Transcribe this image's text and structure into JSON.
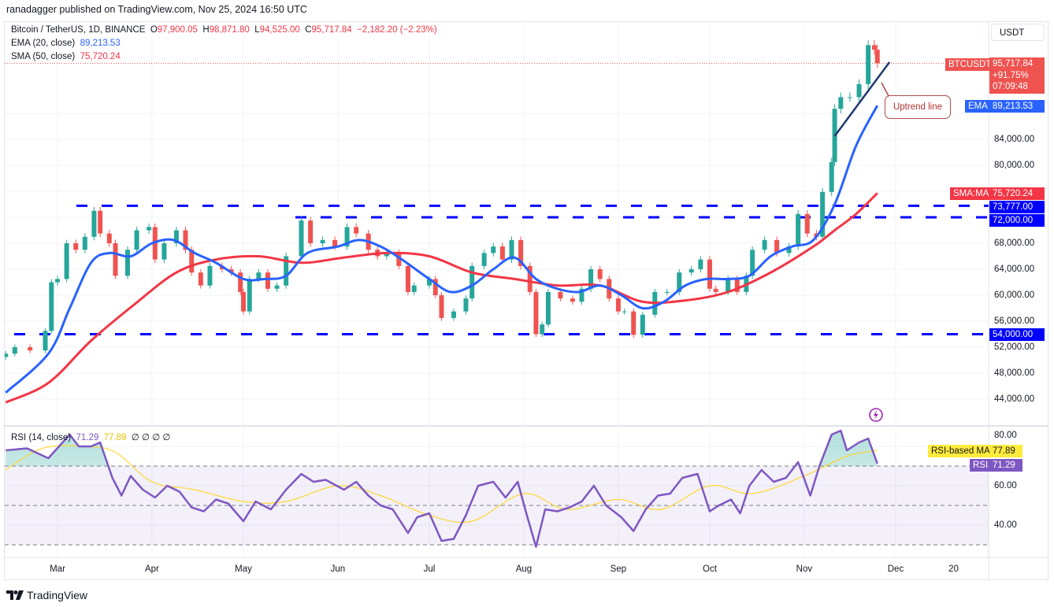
{
  "header": {
    "published": "ranadagger published on TradingView.com, Nov 25, 2024 16:50 UTC"
  },
  "legend": {
    "symbol": "Bitcoin / TetherUS, 1D, BINANCE",
    "o_label": "O",
    "open": "97,900.05",
    "h_label": "H",
    "high": "98,871.80",
    "l_label": "L",
    "low": "94,525.00",
    "c_label": "C",
    "close": "95,717.84",
    "change": "−2,182.20 (−2.23%)",
    "ema_label": "EMA (20, close)",
    "ema_value": "89,213.53",
    "sma_label": "SMA (50, close)",
    "sma_value": "75,720.24",
    "rsi_label": "RSI (14, close)",
    "rsi_value": "71.29",
    "rsi_ma_value": "77.89",
    "rsi_extra": "∅ ∅ ∅ ∅"
  },
  "axis": {
    "currency_button": "USDT",
    "price_ticks": [
      "84,000.00",
      "80,000.00",
      "68,000.00",
      "64,000.00",
      "60,000.00",
      "56,000.00",
      "52,000.00",
      "48,000.00",
      "44,000.00"
    ],
    "rsi_ticks": [
      "80.00",
      "60.00",
      "40.00"
    ],
    "time_ticks": [
      "Mar",
      "Apr",
      "May",
      "Jun",
      "Jul",
      "Aug",
      "Sep",
      "Oct",
      "Nov",
      "Dec",
      "20"
    ]
  },
  "tags": {
    "symbol_tag": "BTCUSDT",
    "last_price": "95,717.84",
    "pct_change": "+91.75%",
    "countdown": "07:09:48",
    "ema_tag": "EMA",
    "ema_value": "89,213.53",
    "sma_tag": "SMA:MA",
    "sma_value": "75,720.24",
    "level_1": "73,777.00",
    "level_2": "72,000.00",
    "level_3": "54,000.00",
    "rsi_ma_tag": "RSI-based MA",
    "rsi_ma_value": "77.89",
    "rsi_tag": "RSI",
    "rsi_value": "71.29"
  },
  "annotation": {
    "callout": "Uptrend line"
  },
  "branding": {
    "logo_text": "TradingView"
  },
  "colors": {
    "up": "#26a69a",
    "down": "#ef5350",
    "ema": "#2962ff",
    "sma": "#f23645",
    "levels": "#0000ff",
    "rsi": "#7e57c2",
    "rsi_ma": "#fdd835",
    "trendline": "#1e3a6e"
  },
  "chart_data": {
    "type": "candlestick",
    "symbol": "BTCUSDT",
    "interval": "1D",
    "price_scale": "linear",
    "ylim": [
      42000,
      100000
    ],
    "horizontal_levels": [
      73777,
      72000,
      54000
    ],
    "trendline": [
      [
        "2024-11-11",
        84500
      ],
      [
        "2024-11-29",
        95900
      ]
    ],
    "closes": [
      [
        "2024-02-13",
        51000
      ],
      [
        "2024-02-16",
        52000
      ],
      [
        "2024-02-21",
        51500
      ],
      [
        "2024-02-26",
        54500
      ],
      [
        "2024-02-28",
        62000
      ],
      [
        "2024-03-01",
        62500
      ],
      [
        "2024-03-04",
        68000
      ],
      [
        "2024-03-07",
        67000
      ],
      [
        "2024-03-10",
        69000
      ],
      [
        "2024-03-13",
        73000
      ],
      [
        "2024-03-15",
        69500
      ],
      [
        "2024-03-18",
        68000
      ],
      [
        "2024-03-20",
        63000
      ],
      [
        "2024-03-24",
        67000
      ],
      [
        "2024-03-27",
        70000
      ],
      [
        "2024-03-31",
        70500
      ],
      [
        "2024-04-02",
        65500
      ],
      [
        "2024-04-05",
        68000
      ],
      [
        "2024-04-09",
        70000
      ],
      [
        "2024-04-12",
        67000
      ],
      [
        "2024-04-14",
        63500
      ],
      [
        "2024-04-17",
        61500
      ],
      [
        "2024-04-20",
        64500
      ],
      [
        "2024-04-24",
        64000
      ],
      [
        "2024-04-27",
        63500
      ],
      [
        "2024-04-30",
        60500
      ],
      [
        "2024-05-01",
        57500
      ],
      [
        "2024-05-03",
        62500
      ],
      [
        "2024-05-06",
        63500
      ],
      [
        "2024-05-09",
        61000
      ],
      [
        "2024-05-12",
        61500
      ],
      [
        "2024-05-15",
        66000
      ],
      [
        "2024-05-20",
        71500
      ],
      [
        "2024-05-23",
        68000
      ],
      [
        "2024-05-27",
        68500
      ],
      [
        "2024-05-31",
        67500
      ],
      [
        "2024-06-04",
        70500
      ],
      [
        "2024-06-07",
        69500
      ],
      [
        "2024-06-11",
        67000
      ],
      [
        "2024-06-14",
        66000
      ],
      [
        "2024-06-17",
        66500
      ],
      [
        "2024-06-21",
        64500
      ],
      [
        "2024-06-24",
        60500
      ],
      [
        "2024-06-26",
        61500
      ],
      [
        "2024-07-01",
        62500
      ],
      [
        "2024-07-03",
        60000
      ],
      [
        "2024-07-05",
        56500
      ],
      [
        "2024-07-09",
        57500
      ],
      [
        "2024-07-13",
        59500
      ],
      [
        "2024-07-15",
        64500
      ],
      [
        "2024-07-19",
        66500
      ],
      [
        "2024-07-22",
        67500
      ],
      [
        "2024-07-25",
        65500
      ],
      [
        "2024-07-28",
        68500
      ],
      [
        "2024-07-31",
        64500
      ],
      [
        "2024-08-03",
        60500
      ],
      [
        "2024-08-05",
        54000
      ],
      [
        "2024-08-07",
        55500
      ],
      [
        "2024-08-09",
        60500
      ],
      [
        "2024-08-13",
        59500
      ],
      [
        "2024-08-17",
        59000
      ],
      [
        "2024-08-20",
        61000
      ],
      [
        "2024-08-23",
        64000
      ],
      [
        "2024-08-26",
        62500
      ],
      [
        "2024-08-29",
        59500
      ],
      [
        "2024-09-01",
        57500
      ],
      [
        "2024-09-03",
        57500
      ],
      [
        "2024-09-06",
        53900
      ],
      [
        "2024-09-09",
        57000
      ],
      [
        "2024-09-13",
        60500
      ],
      [
        "2024-09-17",
        60500
      ],
      [
        "2024-09-21",
        63500
      ],
      [
        "2024-09-25",
        64000
      ],
      [
        "2024-09-28",
        65500
      ],
      [
        "2024-10-01",
        61000
      ],
      [
        "2024-10-03",
        60500
      ],
      [
        "2024-10-07",
        62500
      ],
      [
        "2024-10-10",
        60500
      ],
      [
        "2024-10-13",
        63000
      ],
      [
        "2024-10-15",
        67000
      ],
      [
        "2024-10-19",
        68500
      ],
      [
        "2024-10-23",
        66500
      ],
      [
        "2024-10-27",
        67500
      ],
      [
        "2024-10-30",
        72500
      ],
      [
        "2024-11-02",
        69500
      ],
      [
        "2024-11-05",
        69000
      ],
      [
        "2024-11-07",
        75900
      ],
      [
        "2024-11-10",
        80500
      ],
      [
        "2024-11-11",
        88700
      ],
      [
        "2024-11-13",
        90500
      ],
      [
        "2024-11-16",
        90500
      ],
      [
        "2024-11-19",
        92500
      ],
      [
        "2024-11-22",
        98500
      ],
      [
        "2024-11-24",
        97800
      ],
      [
        "2024-11-25",
        95717.84
      ]
    ],
    "ema20": [
      [
        "2024-02-13",
        45000
      ],
      [
        "2024-02-27",
        51000
      ],
      [
        "2024-03-05",
        58000
      ],
      [
        "2024-03-12",
        65000
      ],
      [
        "2024-03-18",
        66500
      ],
      [
        "2024-03-25",
        66000
      ],
      [
        "2024-04-01",
        68000
      ],
      [
        "2024-04-08",
        68500
      ],
      [
        "2024-04-15",
        66500
      ],
      [
        "2024-04-22",
        65000
      ],
      [
        "2024-05-01",
        62500
      ],
      [
        "2024-05-08",
        62500
      ],
      [
        "2024-05-15",
        63000
      ],
      [
        "2024-05-22",
        66500
      ],
      [
        "2024-06-01",
        67500
      ],
      [
        "2024-06-08",
        68500
      ],
      [
        "2024-06-15",
        67500
      ],
      [
        "2024-06-22",
        65500
      ],
      [
        "2024-07-01",
        62500
      ],
      [
        "2024-07-08",
        60500
      ],
      [
        "2024-07-15",
        61500
      ],
      [
        "2024-07-22",
        64000
      ],
      [
        "2024-07-29",
        65800
      ],
      [
        "2024-08-05",
        62500
      ],
      [
        "2024-08-12",
        61000
      ],
      [
        "2024-08-19",
        60500
      ],
      [
        "2024-08-26",
        61500
      ],
      [
        "2024-09-02",
        60000
      ],
      [
        "2024-09-09",
        58000
      ],
      [
        "2024-09-16",
        59000
      ],
      [
        "2024-09-23",
        61500
      ],
      [
        "2024-09-30",
        62500
      ],
      [
        "2024-10-07",
        62500
      ],
      [
        "2024-10-14",
        63000
      ],
      [
        "2024-10-21",
        66000
      ],
      [
        "2024-10-28",
        67500
      ],
      [
        "2024-11-04",
        68500
      ],
      [
        "2024-11-11",
        74000
      ],
      [
        "2024-11-18",
        83000
      ],
      [
        "2024-11-25",
        89213.53
      ]
    ],
    "sma50": [
      [
        "2024-02-13",
        43500
      ],
      [
        "2024-02-27",
        46500
      ],
      [
        "2024-03-12",
        53000
      ],
      [
        "2024-03-26",
        58500
      ],
      [
        "2024-04-09",
        63500
      ],
      [
        "2024-04-22",
        65500
      ],
      [
        "2024-05-06",
        66000
      ],
      [
        "2024-05-20",
        65000
      ],
      [
        "2024-06-03",
        65800
      ],
      [
        "2024-06-17",
        66500
      ],
      [
        "2024-07-01",
        66000
      ],
      [
        "2024-07-15",
        63500
      ],
      [
        "2024-07-29",
        62500
      ],
      [
        "2024-08-12",
        61500
      ],
      [
        "2024-08-26",
        61500
      ],
      [
        "2024-09-09",
        59000
      ],
      [
        "2024-09-23",
        59200
      ],
      [
        "2024-10-07",
        60500
      ],
      [
        "2024-10-21",
        63500
      ],
      [
        "2024-11-04",
        67500
      ],
      [
        "2024-11-11",
        70000
      ],
      [
        "2024-11-18",
        72500
      ],
      [
        "2024-11-25",
        75720.24
      ]
    ],
    "rsi": {
      "ylim": [
        20,
        90
      ],
      "overbought": 70,
      "middle": 50,
      "oversold": 30,
      "values": [
        [
          "2024-02-13",
          78
        ],
        [
          "2024-02-20",
          79
        ],
        [
          "2024-02-27",
          74
        ],
        [
          "2024-03-05",
          86
        ],
        [
          "2024-03-08",
          80
        ],
        [
          "2024-03-12",
          80
        ],
        [
          "2024-03-15",
          82
        ],
        [
          "2024-03-19",
          64
        ],
        [
          "2024-03-22",
          55
        ],
        [
          "2024-03-25",
          65
        ],
        [
          "2024-03-29",
          58
        ],
        [
          "2024-04-02",
          54
        ],
        [
          "2024-04-06",
          60
        ],
        [
          "2024-04-10",
          57
        ],
        [
          "2024-04-14",
          49
        ],
        [
          "2024-04-18",
          47
        ],
        [
          "2024-04-22",
          53
        ],
        [
          "2024-04-26",
          51
        ],
        [
          "2024-05-01",
          42
        ],
        [
          "2024-05-05",
          52
        ],
        [
          "2024-05-10",
          48
        ],
        [
          "2024-05-15",
          58
        ],
        [
          "2024-05-20",
          66
        ],
        [
          "2024-05-24",
          62
        ],
        [
          "2024-05-28",
          63
        ],
        [
          "2024-06-03",
          58
        ],
        [
          "2024-06-07",
          62
        ],
        [
          "2024-06-11",
          55
        ],
        [
          "2024-06-15",
          50
        ],
        [
          "2024-06-19",
          48
        ],
        [
          "2024-06-24",
          36
        ],
        [
          "2024-06-27",
          44
        ],
        [
          "2024-07-01",
          46
        ],
        [
          "2024-07-05",
          32
        ],
        [
          "2024-07-09",
          33
        ],
        [
          "2024-07-13",
          45
        ],
        [
          "2024-07-17",
          60
        ],
        [
          "2024-07-22",
          62
        ],
        [
          "2024-07-26",
          54
        ],
        [
          "2024-07-30",
          62
        ],
        [
          "2024-08-02",
          45
        ],
        [
          "2024-08-05",
          29
        ],
        [
          "2024-08-08",
          48
        ],
        [
          "2024-08-12",
          47
        ],
        [
          "2024-08-16",
          49
        ],
        [
          "2024-08-20",
          52
        ],
        [
          "2024-08-24",
          60
        ],
        [
          "2024-08-28",
          50
        ],
        [
          "2024-09-02",
          44
        ],
        [
          "2024-09-06",
          37
        ],
        [
          "2024-09-10",
          48
        ],
        [
          "2024-09-14",
          55
        ],
        [
          "2024-09-18",
          56
        ],
        [
          "2024-09-22",
          64
        ],
        [
          "2024-09-27",
          66
        ],
        [
          "2024-10-01",
          47
        ],
        [
          "2024-10-04",
          50
        ],
        [
          "2024-10-08",
          53
        ],
        [
          "2024-10-11",
          46
        ],
        [
          "2024-10-14",
          60
        ],
        [
          "2024-10-18",
          68
        ],
        [
          "2024-10-22",
          62
        ],
        [
          "2024-10-26",
          64
        ],
        [
          "2024-10-30",
          72
        ],
        [
          "2024-11-03",
          55
        ],
        [
          "2024-11-06",
          70
        ],
        [
          "2024-11-10",
          86
        ],
        [
          "2024-11-13",
          88
        ],
        [
          "2024-11-15",
          78
        ],
        [
          "2024-11-19",
          82
        ],
        [
          "2024-11-22",
          84
        ],
        [
          "2024-11-25",
          71.29
        ]
      ],
      "ma": [
        [
          "2024-02-13",
          68
        ],
        [
          "2024-02-25",
          79
        ],
        [
          "2024-03-10",
          80
        ],
        [
          "2024-03-20",
          77
        ],
        [
          "2024-04-01",
          62
        ],
        [
          "2024-04-15",
          58
        ],
        [
          "2024-05-01",
          52
        ],
        [
          "2024-05-15",
          52
        ],
        [
          "2024-06-01",
          60
        ],
        [
          "2024-06-15",
          55
        ],
        [
          "2024-07-01",
          45
        ],
        [
          "2024-07-15",
          42
        ],
        [
          "2024-08-01",
          56
        ],
        [
          "2024-08-15",
          48
        ],
        [
          "2024-09-01",
          53
        ],
        [
          "2024-09-15",
          48
        ],
        [
          "2024-10-01",
          60
        ],
        [
          "2024-10-15",
          56
        ],
        [
          "2024-11-01",
          65
        ],
        [
          "2024-11-15",
          75
        ],
        [
          "2024-11-25",
          77.89
        ]
      ]
    }
  }
}
